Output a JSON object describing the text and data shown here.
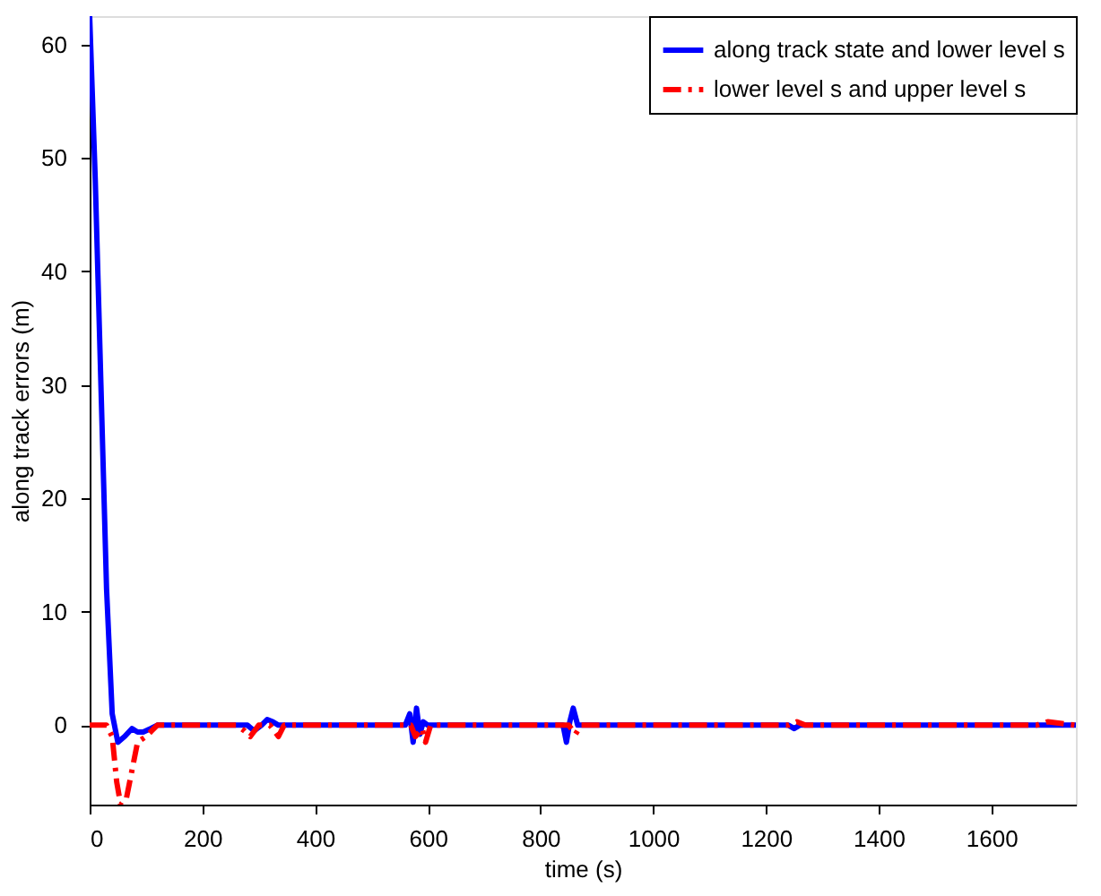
{
  "chart_data": {
    "type": "line",
    "xlabel": "time (s)",
    "ylabel": "along track errors (m)",
    "xlim": [
      0,
      1750
    ],
    "ylim": [
      -7,
      62.5
    ],
    "xticks": [
      0,
      200,
      400,
      600,
      800,
      1000,
      1200,
      1400,
      1600
    ],
    "yticks": [
      0,
      10,
      20,
      30,
      40,
      50,
      60
    ],
    "grid": false,
    "legend": "top right",
    "marker": "none",
    "series": [
      {
        "name": "along track state and lower level s",
        "color": "#0000ff",
        "line_style": "solid",
        "x": [
          0,
          10,
          20,
          30,
          40,
          50,
          62,
          75,
          85,
          95,
          108,
          120,
          280,
          292,
          305,
          315,
          325,
          335,
          560,
          568,
          574,
          580,
          586,
          592,
          600,
          840,
          846,
          852,
          858,
          866,
          1240,
          1250,
          1260,
          1750
        ],
        "values": [
          62.5,
          48,
          30,
          12,
          1,
          -1.5,
          -1,
          -0.3,
          -0.6,
          -0.6,
          -0.3,
          0,
          0,
          -0.5,
          0,
          0.5,
          0.3,
          0,
          0,
          1,
          -1.5,
          1.5,
          -0.8,
          0.3,
          0,
          0,
          -1.5,
          0.3,
          1.5,
          0,
          0,
          -0.3,
          0,
          0
        ]
      },
      {
        "name": "lower level s and upper level s",
        "color": "#ff0000",
        "line_style": "dashed",
        "x": [
          0,
          30,
          40,
          48,
          55,
          65,
          75,
          85,
          100,
          110,
          120,
          260,
          275,
          285,
          300,
          320,
          335,
          345,
          570,
          578,
          590,
          596,
          605,
          850,
          862,
          872,
          1240,
          1255,
          1270,
          1680,
          1700,
          1750
        ],
        "values": [
          0,
          0,
          -1,
          -5,
          -7,
          -6.5,
          -4,
          -1.5,
          -1,
          -0.5,
          0,
          0,
          -0.5,
          -1,
          0,
          0,
          -1,
          0,
          0,
          -1,
          -0.3,
          -1.5,
          0,
          0,
          -0.8,
          0,
          0,
          0.3,
          0,
          0,
          0.3,
          0
        ]
      }
    ]
  }
}
